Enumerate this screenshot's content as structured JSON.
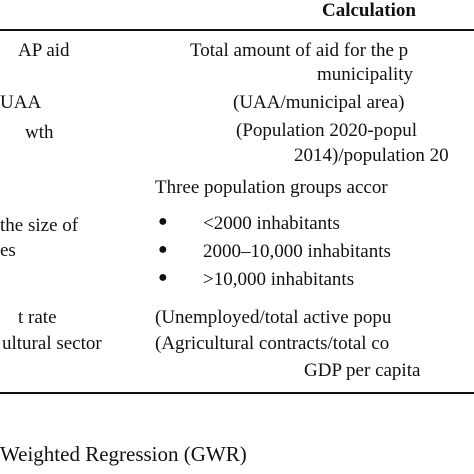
{
  "table": {
    "header": "Calculation",
    "rows": [
      {
        "indicator": "AP aid",
        "calc_lines": [
          "Total amount of aid for the p",
          "municipality"
        ]
      },
      {
        "indicator": "UAA",
        "calc_lines": [
          "(UAA/municipal area)"
        ]
      },
      {
        "indicator": "wth",
        "calc_lines": [
          "(Population 2020-popul",
          "2014)/population 20"
        ]
      },
      {
        "indicator": "the size of",
        "indicator2": "es",
        "calc_lines": [
          "Three population groups accor"
        ],
        "bullets": [
          "<2000 inhabitants",
          "2000–10,000 inhabitants",
          ">10,000 inhabitants"
        ]
      },
      {
        "indicator": "t rate",
        "calc_lines": [
          "(Unemployed/total active popu"
        ]
      },
      {
        "indicator": "ultural sector",
        "calc_lines": [
          "(Agricultural contracts/total co"
        ]
      },
      {
        "indicator": "",
        "calc_lines": [
          "GDP per capita"
        ]
      }
    ]
  },
  "caption": "Weighted Regression (GWR)"
}
